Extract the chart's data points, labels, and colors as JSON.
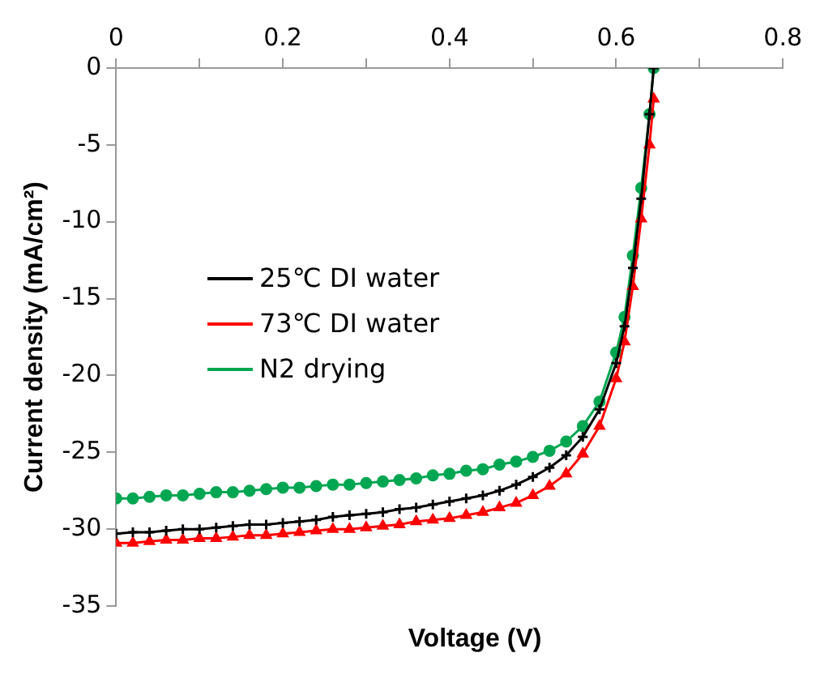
{
  "chart_data": {
    "type": "line",
    "xlabel": "Voltage (V)",
    "ylabel": "Current density (mA/cm²)",
    "x": [
      0,
      0.02,
      0.04,
      0.06,
      0.08,
      0.1,
      0.12,
      0.14,
      0.16,
      0.18,
      0.2,
      0.22,
      0.24,
      0.26,
      0.28,
      0.3,
      0.32,
      0.34,
      0.36,
      0.38,
      0.4,
      0.42,
      0.44,
      0.46,
      0.48,
      0.5,
      0.52,
      0.54,
      0.56,
      0.58,
      0.6,
      0.61,
      0.62,
      0.63,
      0.64,
      0.645
    ],
    "series": [
      {
        "name": "25℃ DI water",
        "color": "#000000",
        "marker": "cross",
        "values": [
          -30.3,
          -30.2,
          -30.2,
          -30.1,
          -30.0,
          -30.0,
          -29.9,
          -29.8,
          -29.7,
          -29.7,
          -29.6,
          -29.5,
          -29.4,
          -29.2,
          -29.1,
          -29.0,
          -28.9,
          -28.7,
          -28.6,
          -28.4,
          -28.2,
          -28.0,
          -27.8,
          -27.5,
          -27.1,
          -26.6,
          -26.0,
          -25.2,
          -24.0,
          -22.2,
          -19.2,
          -16.8,
          -13.0,
          -8.5,
          -3.0,
          0
        ]
      },
      {
        "name": "73℃ DI water",
        "color": "#ff0000",
        "marker": "triangle",
        "values": [
          -30.9,
          -30.9,
          -30.8,
          -30.7,
          -30.7,
          -30.6,
          -30.6,
          -30.5,
          -30.4,
          -30.4,
          -30.3,
          -30.2,
          -30.1,
          -30.0,
          -30.0,
          -29.9,
          -29.8,
          -29.7,
          -29.5,
          -29.4,
          -29.3,
          -29.1,
          -28.9,
          -28.6,
          -28.3,
          -27.8,
          -27.2,
          -26.4,
          -25.1,
          -23.3,
          -20.2,
          -17.8,
          -14.2,
          -9.8,
          -5.0,
          -2.0
        ]
      },
      {
        "name": "N2 drying",
        "color": "#00a651",
        "marker": "circle",
        "values": [
          -28.0,
          -28.0,
          -27.9,
          -27.8,
          -27.8,
          -27.7,
          -27.6,
          -27.6,
          -27.5,
          -27.4,
          -27.3,
          -27.3,
          -27.2,
          -27.1,
          -27.1,
          -27.0,
          -26.9,
          -26.8,
          -26.7,
          -26.5,
          -26.4,
          -26.2,
          -26.1,
          -25.8,
          -25.6,
          -25.3,
          -24.9,
          -24.3,
          -23.3,
          -21.7,
          -18.5,
          -16.2,
          -12.2,
          -7.8,
          -3.0,
          0
        ]
      }
    ],
    "xlim": [
      0,
      0.8
    ],
    "xticks": [
      0,
      {
        "value": 0.1,
        "label": null
      },
      0.2,
      {
        "value": 0.3,
        "label": null
      },
      0.4,
      {
        "value": 0.5,
        "label": null
      },
      0.6,
      {
        "value": 0.7,
        "label": null
      },
      0.8
    ],
    "ylim": [
      -35,
      0
    ],
    "yticks": [
      -35,
      -30,
      -25,
      -20,
      -15,
      -10,
      -5,
      0
    ],
    "grid": false,
    "legend": "top left",
    "line_style": "solid"
  }
}
